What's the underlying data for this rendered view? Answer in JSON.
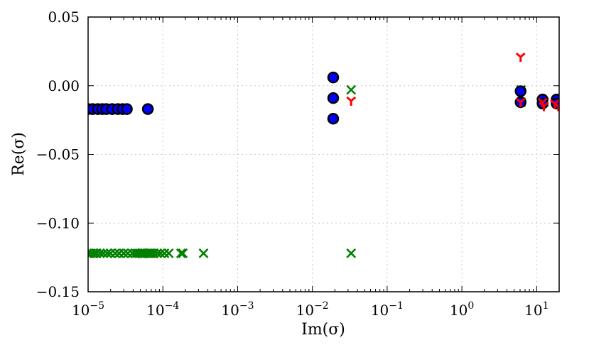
{
  "chart_data": {
    "type": "scatter",
    "xlabel": "Im(σ)",
    "ylabel": "Re(σ)",
    "xscale": "log",
    "xlim": [
      1e-05,
      20
    ],
    "ylim": [
      -0.15,
      0.05
    ],
    "grid": true,
    "x_ticks": [
      {
        "value": 1e-05,
        "base": "10",
        "exp": "−5"
      },
      {
        "value": 0.0001,
        "base": "10",
        "exp": "−4"
      },
      {
        "value": 0.001,
        "base": "10",
        "exp": "−3"
      },
      {
        "value": 0.01,
        "base": "10",
        "exp": "−2"
      },
      {
        "value": 0.1,
        "base": "10",
        "exp": "−1"
      },
      {
        "value": 1,
        "base": "10",
        "exp": "0"
      },
      {
        "value": 10,
        "base": "10",
        "exp": "1"
      }
    ],
    "y_ticks": [
      {
        "value": 0.05,
        "label": "0.05"
      },
      {
        "value": 0.0,
        "label": "0.00"
      },
      {
        "value": -0.05,
        "label": "−0.05"
      },
      {
        "value": -0.1,
        "label": "−0.10"
      },
      {
        "value": -0.15,
        "label": "−0.15"
      }
    ],
    "series": [
      {
        "marker": "x",
        "color": "#008000",
        "points": [
          [
            1e-05,
            -0.122
          ],
          [
            1.1e-05,
            -0.122
          ],
          [
            1.2e-05,
            -0.122
          ],
          [
            1.3e-05,
            -0.122
          ],
          [
            1.45e-05,
            -0.122
          ],
          [
            1.6e-05,
            -0.122
          ],
          [
            1.8e-05,
            -0.122
          ],
          [
            2e-05,
            -0.122
          ],
          [
            2.3e-05,
            -0.122
          ],
          [
            2.6e-05,
            -0.122
          ],
          [
            3e-05,
            -0.122
          ],
          [
            3.4e-05,
            -0.122
          ],
          [
            3.9e-05,
            -0.122
          ],
          [
            4.3e-05,
            -0.122
          ],
          [
            4.6e-05,
            -0.122
          ],
          [
            4.9e-05,
            -0.122
          ],
          [
            5.2e-05,
            -0.122
          ],
          [
            5.5e-05,
            -0.122
          ],
          [
            5.8e-05,
            -0.122
          ],
          [
            6.1e-05,
            -0.122
          ],
          [
            6.4e-05,
            -0.122
          ],
          [
            6.7e-05,
            -0.122
          ],
          [
            7e-05,
            -0.122
          ],
          [
            7.6e-05,
            -0.122
          ],
          [
            8.4e-05,
            -0.122
          ],
          [
            9.3e-05,
            -0.122
          ],
          [
            0.000105,
            -0.122
          ],
          [
            0.00012,
            -0.122
          ],
          [
            0.000175,
            -0.122
          ],
          [
            0.000185,
            -0.122
          ],
          [
            0.00035,
            -0.122
          ],
          [
            0.033,
            -0.122
          ],
          [
            0.033,
            -0.003
          ],
          [
            6.2,
            -0.003
          ],
          [
            6.2,
            -0.012
          ],
          [
            12.5,
            -0.012
          ],
          [
            18.5,
            -0.012
          ]
        ]
      },
      {
        "marker": "o",
        "color": "#0000ff",
        "points": [
          [
            1e-05,
            -0.017
          ],
          [
            1.15e-05,
            -0.017
          ],
          [
            1.35e-05,
            -0.017
          ],
          [
            1.55e-05,
            -0.017
          ],
          [
            1.75e-05,
            -0.017
          ],
          [
            2.1e-05,
            -0.017
          ],
          [
            2.5e-05,
            -0.017
          ],
          [
            2.9e-05,
            -0.017
          ],
          [
            3.3e-05,
            -0.017
          ],
          [
            6.3e-05,
            -0.017
          ],
          [
            0.019,
            0.006
          ],
          [
            0.019,
            -0.009
          ],
          [
            0.019,
            -0.024
          ],
          [
            6.1,
            -0.004
          ],
          [
            6.1,
            -0.012
          ],
          [
            12.0,
            -0.01
          ],
          [
            12.0,
            -0.013
          ],
          [
            18.5,
            -0.01
          ],
          [
            18.5,
            -0.013
          ]
        ]
      },
      {
        "marker": "tri_down",
        "color": "#ff0000",
        "points": [
          [
            0.033,
            -0.011
          ],
          [
            6.1,
            0.021
          ],
          [
            6.1,
            -0.012
          ],
          [
            12.0,
            -0.012
          ],
          [
            12.5,
            -0.015
          ],
          [
            17.5,
            -0.013
          ],
          [
            19.5,
            -0.015
          ]
        ]
      }
    ]
  }
}
